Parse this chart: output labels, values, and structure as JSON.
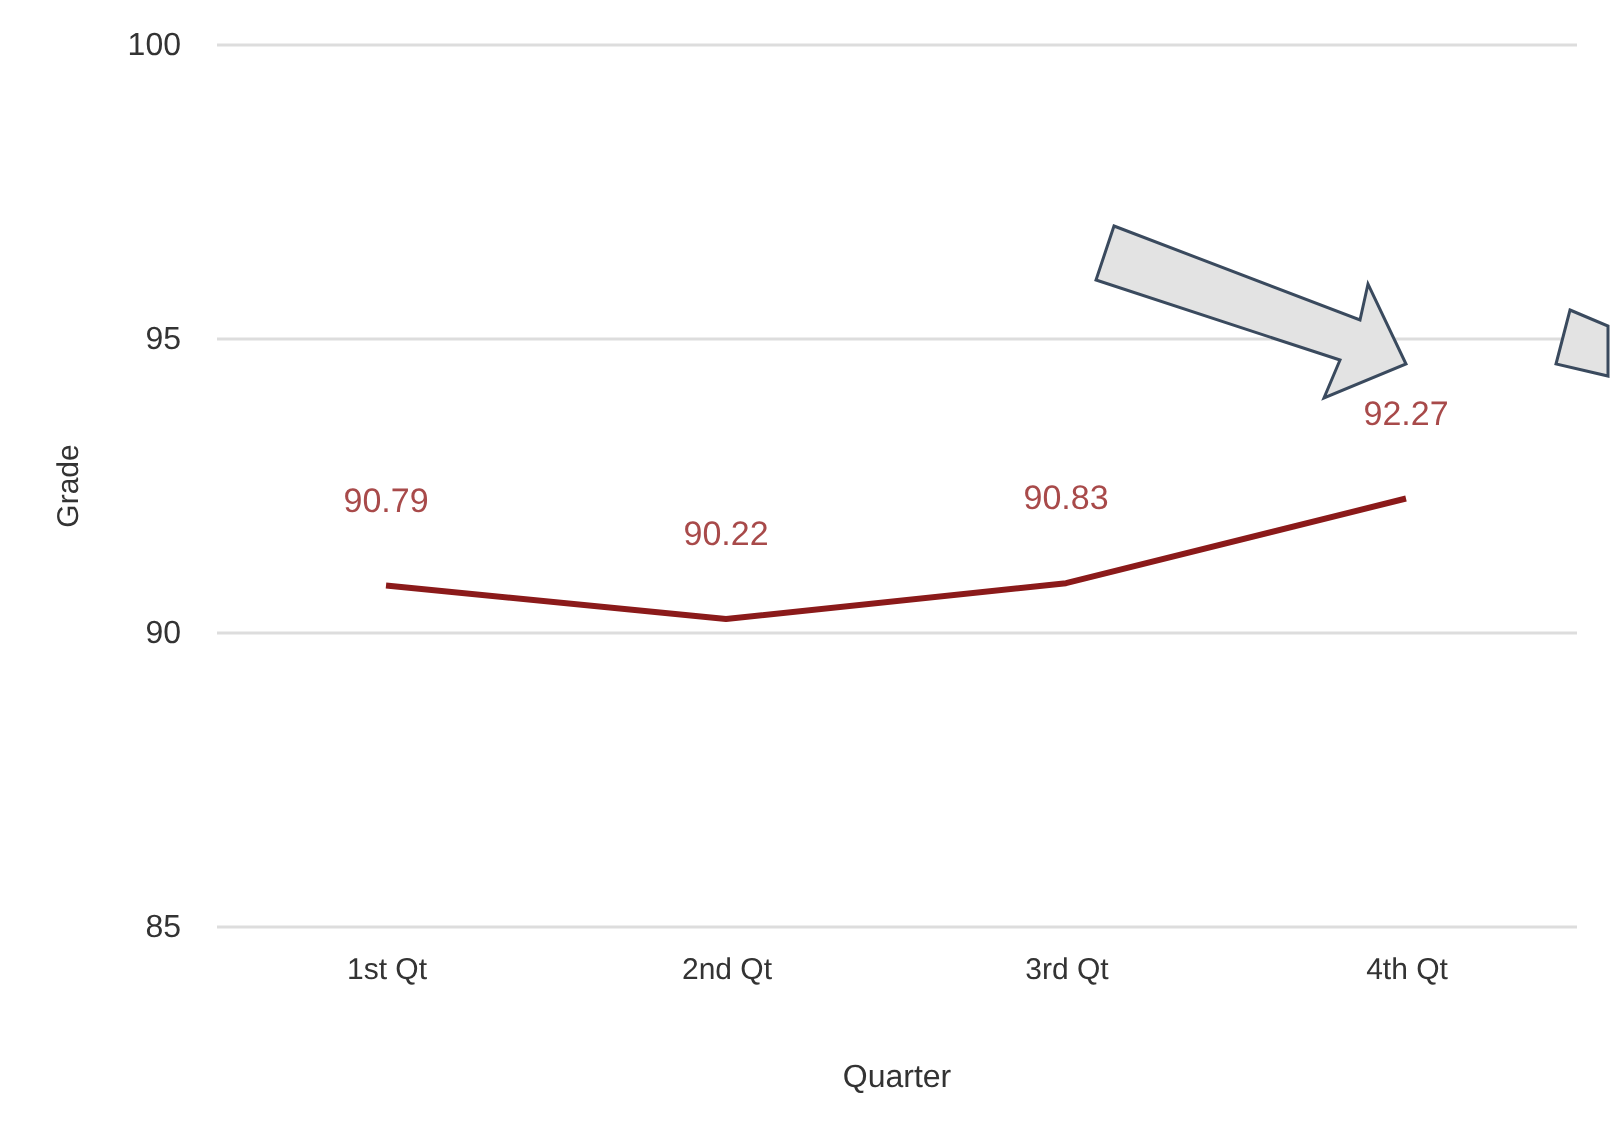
{
  "chart_data": {
    "type": "line",
    "xlabel": "Quarter",
    "ylabel": "Grade",
    "categories": [
      "1st Qt",
      "2nd Qt",
      "3rd Qt",
      "4th Qt"
    ],
    "series": [
      {
        "color": "#8b1a1a",
        "values": [
          90.79,
          90.22,
          90.83,
          92.27
        ]
      }
    ],
    "ylim": [
      85,
      100
    ],
    "yticks": [
      85,
      90,
      95,
      100
    ],
    "grid": "y",
    "data_labels": true,
    "marker": "none",
    "line_style": "solid"
  }
}
